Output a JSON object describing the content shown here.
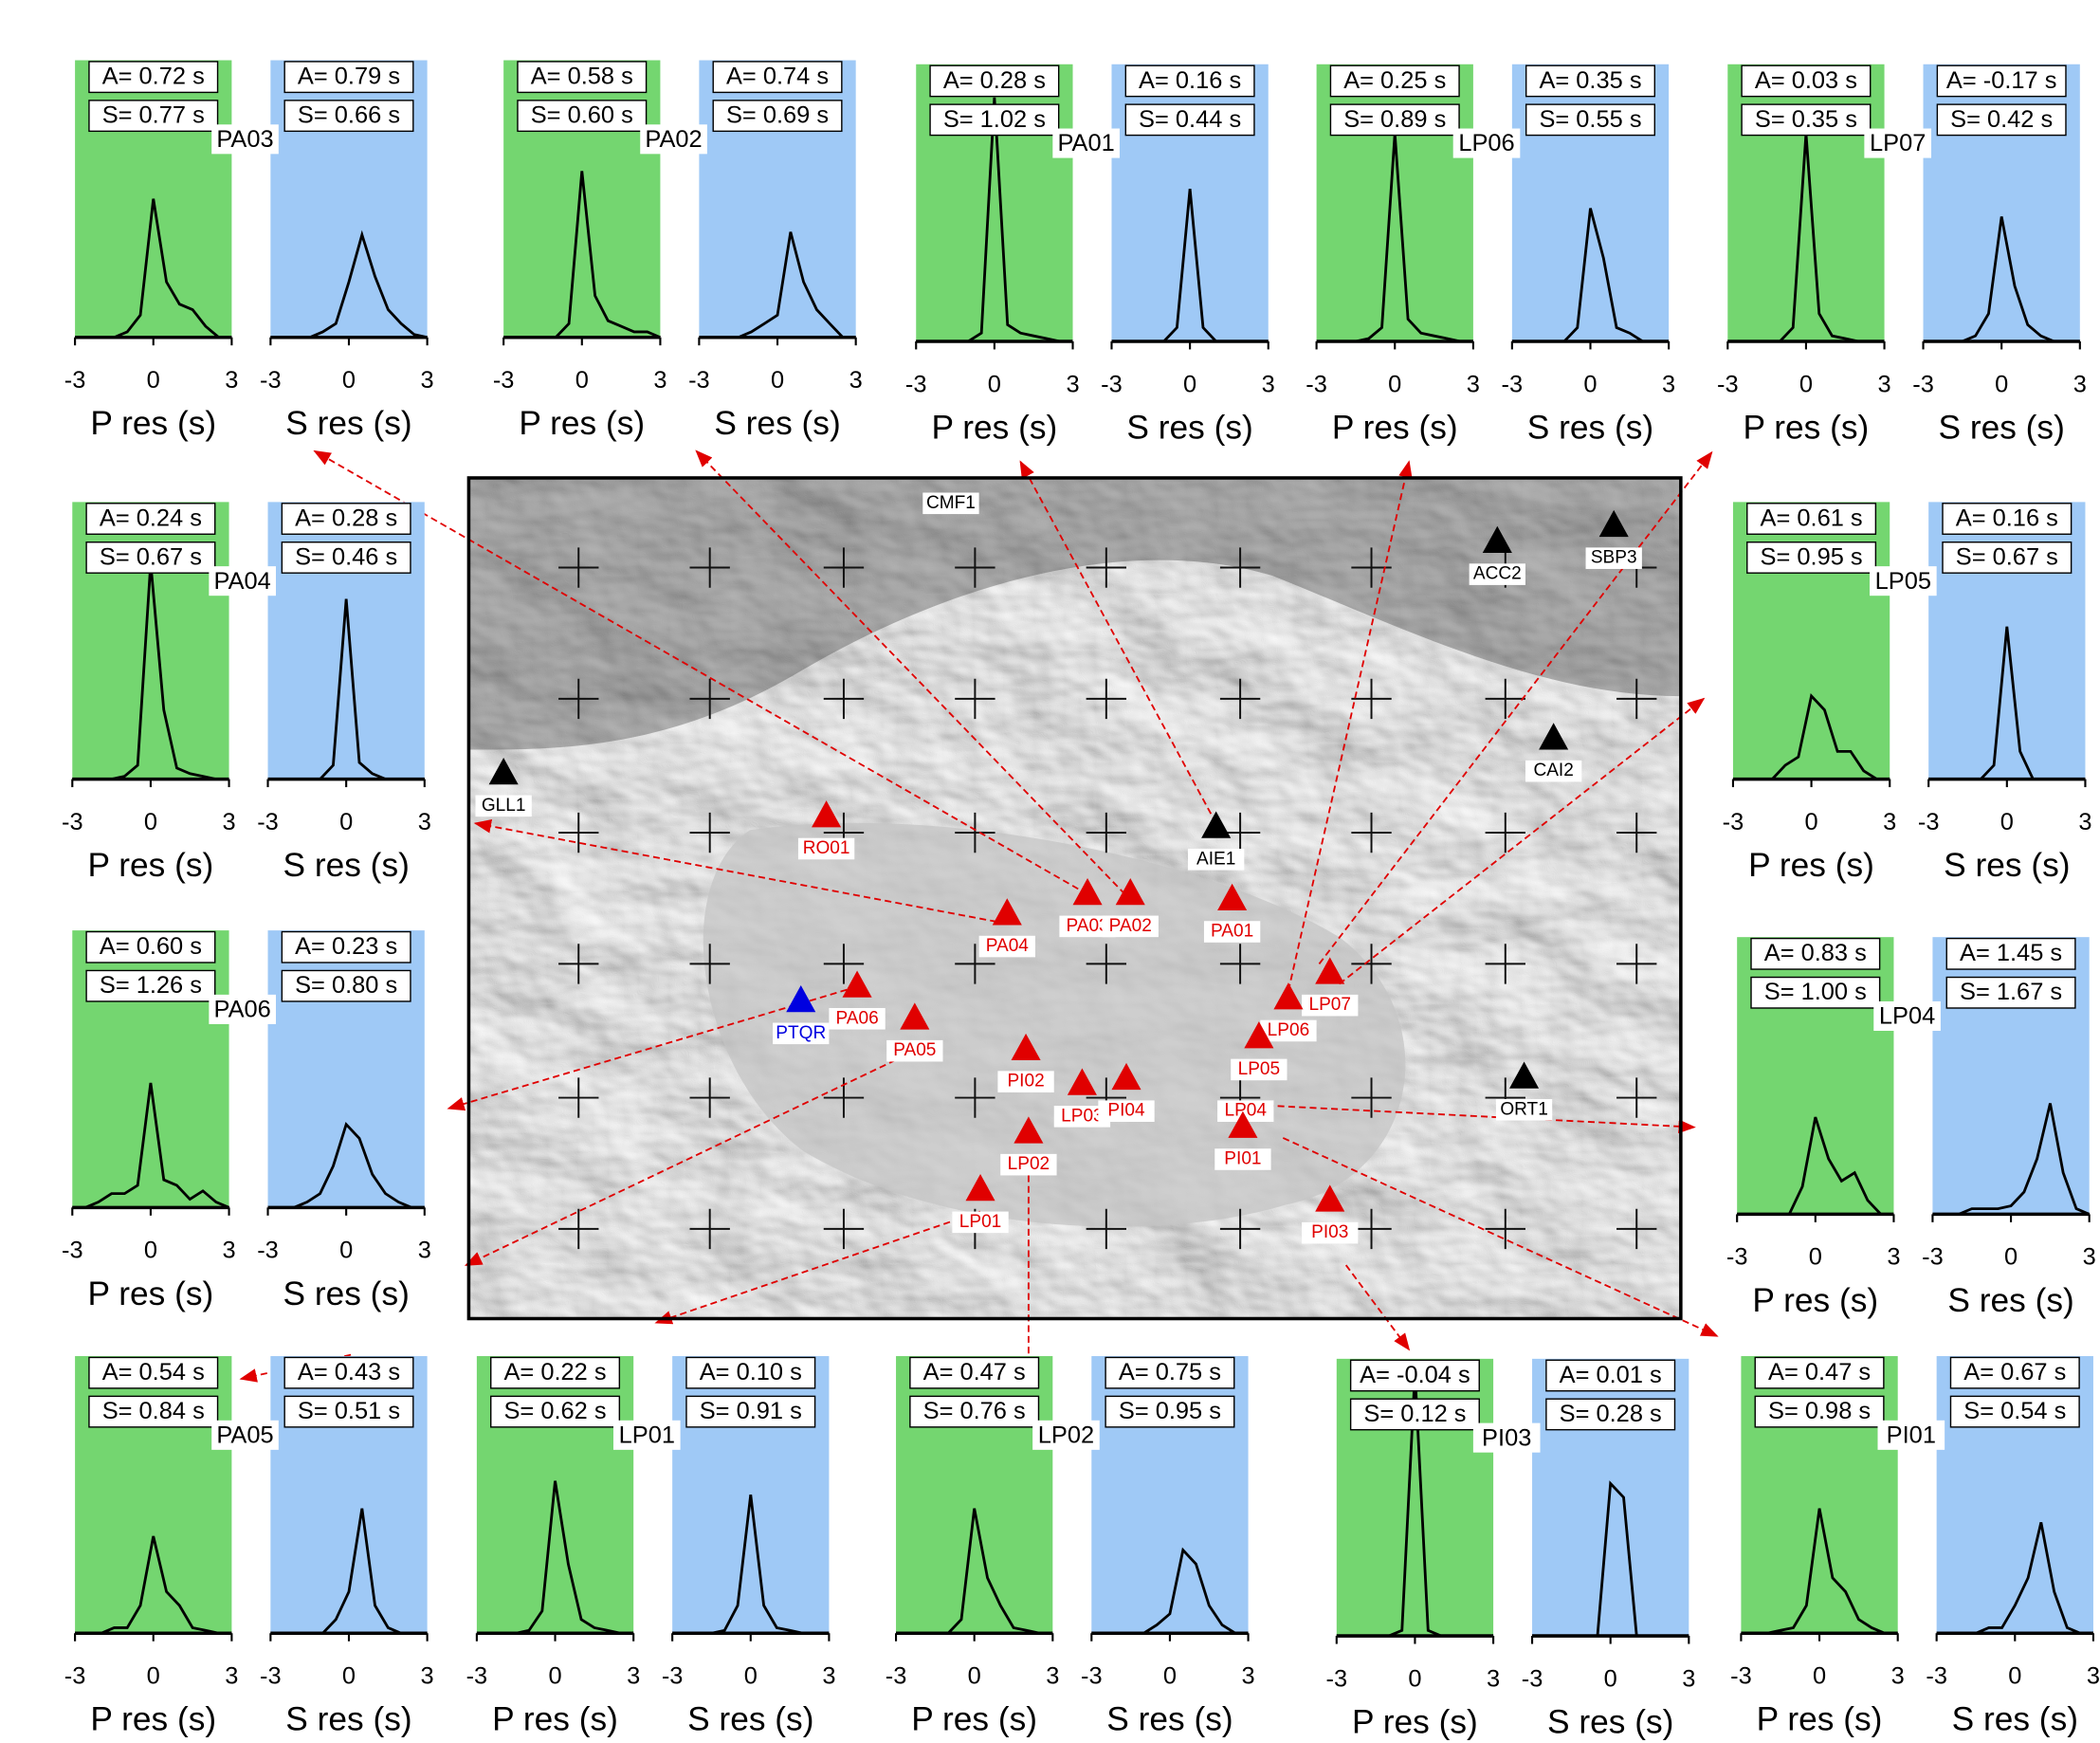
{
  "chart_data": [
    {
      "type": "line",
      "title": "PA03",
      "x": [
        -3,
        -2.5,
        -2,
        -1.5,
        -1,
        -0.5,
        0,
        0.5,
        1,
        1.5,
        2,
        2.5,
        3
      ],
      "xlim": [
        -3,
        3
      ],
      "xticks": [
        -3,
        0,
        3
      ],
      "ylim": [
        0,
        1
      ],
      "series": [
        {
          "name": "P res (s)",
          "color": "#74d670",
          "annotations": [
            "A= 0.72 s",
            "S= 0.77 s"
          ],
          "values": [
            0,
            0,
            0,
            0,
            0.02,
            0.08,
            0.5,
            0.2,
            0.12,
            0.1,
            0.04,
            0,
            0
          ]
        },
        {
          "name": "S res (s)",
          "color": "#9fc9f6",
          "annotations": [
            "A= 0.79 s",
            "S= 0.66 s"
          ],
          "values": [
            0,
            0,
            0,
            0,
            0.02,
            0.05,
            0.2,
            0.37,
            0.22,
            0.1,
            0.05,
            0.01,
            0
          ]
        }
      ]
    },
    {
      "type": "line",
      "title": "PA02",
      "x": [
        -3,
        -2.5,
        -2,
        -1.5,
        -1,
        -0.5,
        0,
        0.5,
        1,
        1.5,
        2,
        2.5,
        3
      ],
      "xlim": [
        -3,
        3
      ],
      "xticks": [
        -3,
        0,
        3
      ],
      "ylim": [
        0,
        1
      ],
      "series": [
        {
          "name": "P res (s)",
          "color": "#74d670",
          "annotations": [
            "A= 0.58 s",
            "S= 0.60 s"
          ],
          "values": [
            0,
            0,
            0,
            0,
            0,
            0.05,
            0.6,
            0.15,
            0.06,
            0.04,
            0.02,
            0.02,
            0
          ]
        },
        {
          "name": "S res (s)",
          "color": "#9fc9f6",
          "annotations": [
            "A= 0.74 s",
            "S= 0.69 s"
          ],
          "values": [
            0,
            0,
            0,
            0,
            0.02,
            0.05,
            0.08,
            0.38,
            0.2,
            0.1,
            0.05,
            0,
            0
          ]
        }
      ]
    },
    {
      "type": "line",
      "title": "PA01",
      "x": [
        -3,
        -2.5,
        -2,
        -1.5,
        -1,
        -0.5,
        0,
        0.5,
        1,
        1.5,
        2,
        2.5,
        3
      ],
      "xlim": [
        -3,
        3
      ],
      "xticks": [
        -3,
        0,
        3
      ],
      "ylim": [
        0,
        1
      ],
      "series": [
        {
          "name": "P res (s)",
          "color": "#74d670",
          "annotations": [
            "A= 0.28 s",
            "S= 1.02 s"
          ],
          "values": [
            0,
            0,
            0,
            0,
            0,
            0.03,
            0.88,
            0.06,
            0.03,
            0.02,
            0.01,
            0,
            0
          ]
        },
        {
          "name": "S res (s)",
          "color": "#9fc9f6",
          "annotations": [
            "A= 0.16 s",
            "S= 0.44 s"
          ],
          "values": [
            0,
            0,
            0,
            0,
            0,
            0.05,
            0.55,
            0.05,
            0,
            0,
            0,
            0,
            0
          ]
        }
      ]
    },
    {
      "type": "line",
      "title": "LP06",
      "x": [
        -3,
        -2.5,
        -2,
        -1.5,
        -1,
        -0.5,
        0,
        0.5,
        1,
        1.5,
        2,
        2.5,
        3
      ],
      "xlim": [
        -3,
        3
      ],
      "xticks": [
        -3,
        0,
        3
      ],
      "ylim": [
        0,
        1
      ],
      "series": [
        {
          "name": "P res (s)",
          "color": "#74d670",
          "annotations": [
            "A= 0.25 s",
            "S= 0.89 s"
          ],
          "values": [
            0,
            0,
            0,
            0,
            0.01,
            0.05,
            0.75,
            0.08,
            0.03,
            0.02,
            0.01,
            0,
            0
          ]
        },
        {
          "name": "S res (s)",
          "color": "#9fc9f6",
          "annotations": [
            "A= 0.35 s",
            "S= 0.55 s"
          ],
          "values": [
            0,
            0,
            0,
            0,
            0,
            0.05,
            0.48,
            0.3,
            0.05,
            0.03,
            0,
            0,
            0
          ]
        }
      ]
    },
    {
      "type": "line",
      "title": "LP07",
      "x": [
        -3,
        -2.5,
        -2,
        -1.5,
        -1,
        -0.5,
        0,
        0.5,
        1,
        1.5,
        2,
        2.5,
        3
      ],
      "xlim": [
        -3,
        3
      ],
      "xticks": [
        -3,
        0,
        3
      ],
      "ylim": [
        0,
        1
      ],
      "series": [
        {
          "name": "P res (s)",
          "color": "#74d670",
          "annotations": [
            "A= 0.03 s",
            "S= 0.35 s"
          ],
          "values": [
            0,
            0,
            0,
            0,
            0,
            0.05,
            0.75,
            0.1,
            0.02,
            0.01,
            0,
            0,
            0
          ]
        },
        {
          "name": "S res (s)",
          "color": "#9fc9f6",
          "annotations": [
            "A= -0.17 s",
            "S= 0.42 s"
          ],
          "values": [
            0,
            0,
            0,
            0,
            0.02,
            0.1,
            0.45,
            0.2,
            0.06,
            0.02,
            0,
            0,
            0
          ]
        }
      ]
    },
    {
      "type": "line",
      "title": "PA04",
      "x": [
        -3,
        -2.5,
        -2,
        -1.5,
        -1,
        -0.5,
        0,
        0.5,
        1,
        1.5,
        2,
        2.5,
        3
      ],
      "xlim": [
        -3,
        3
      ],
      "xticks": [
        -3,
        0,
        3
      ],
      "ylim": [
        0,
        1
      ],
      "series": [
        {
          "name": "P res (s)",
          "color": "#74d670",
          "annotations": [
            "A= 0.24 s",
            "S= 0.67 s"
          ],
          "values": [
            0,
            0,
            0,
            0,
            0.01,
            0.05,
            0.78,
            0.25,
            0.04,
            0.02,
            0.01,
            0,
            0
          ]
        },
        {
          "name": "S res (s)",
          "color": "#9fc9f6",
          "annotations": [
            "A= 0.28 s",
            "S= 0.46 s"
          ],
          "values": [
            0,
            0,
            0,
            0,
            0,
            0.05,
            0.65,
            0.06,
            0.02,
            0,
            0,
            0,
            0
          ]
        }
      ]
    },
    {
      "type": "line",
      "title": "LP05",
      "x": [
        -3,
        -2.5,
        -2,
        -1.5,
        -1,
        -0.5,
        0,
        0.5,
        1,
        1.5,
        2,
        2.5,
        3
      ],
      "xlim": [
        -3,
        3
      ],
      "xticks": [
        -3,
        0,
        3
      ],
      "ylim": [
        0,
        1
      ],
      "series": [
        {
          "name": "P res (s)",
          "color": "#74d670",
          "annotations": [
            "A= 0.61 s",
            "S= 0.95 s"
          ],
          "values": [
            0,
            0,
            0,
            0,
            0.05,
            0.08,
            0.3,
            0.25,
            0.1,
            0.1,
            0.03,
            0,
            0
          ]
        },
        {
          "name": "S res (s)",
          "color": "#9fc9f6",
          "annotations": [
            "A= 0.16 s",
            "S= 0.67 s"
          ],
          "values": [
            0,
            0,
            0,
            0,
            0,
            0.05,
            0.55,
            0.1,
            0,
            0,
            0,
            0,
            0
          ]
        }
      ]
    },
    {
      "type": "line",
      "title": "PA06",
      "x": [
        -3,
        -2.5,
        -2,
        -1.5,
        -1,
        -0.5,
        0,
        0.5,
        1,
        1.5,
        2,
        2.5,
        3
      ],
      "xlim": [
        -3,
        3
      ],
      "xticks": [
        -3,
        0,
        3
      ],
      "ylim": [
        0,
        1
      ],
      "series": [
        {
          "name": "P res (s)",
          "color": "#74d670",
          "annotations": [
            "A= 0.60 s",
            "S= 1.26 s"
          ],
          "values": [
            0,
            0,
            0.02,
            0.05,
            0.05,
            0.08,
            0.45,
            0.1,
            0.08,
            0.03,
            0.06,
            0.02,
            0
          ]
        },
        {
          "name": "S res (s)",
          "color": "#9fc9f6",
          "annotations": [
            "A= 0.23 s",
            "S= 0.80 s"
          ],
          "values": [
            0,
            0,
            0,
            0.02,
            0.05,
            0.15,
            0.3,
            0.25,
            0.12,
            0.05,
            0.02,
            0,
            0
          ]
        }
      ]
    },
    {
      "type": "line",
      "title": "LP04",
      "x": [
        -3,
        -2.5,
        -2,
        -1.5,
        -1,
        -0.5,
        0,
        0.5,
        1,
        1.5,
        2,
        2.5,
        3
      ],
      "xlim": [
        -3,
        3
      ],
      "xticks": [
        -3,
        0,
        3
      ],
      "ylim": [
        0,
        1
      ],
      "series": [
        {
          "name": "P res (s)",
          "color": "#74d670",
          "annotations": [
            "A= 0.83 s",
            "S= 1.00 s"
          ],
          "values": [
            0,
            0,
            0,
            0,
            0,
            0.1,
            0.35,
            0.2,
            0.12,
            0.15,
            0.05,
            0,
            0
          ]
        },
        {
          "name": "S res (s)",
          "color": "#9fc9f6",
          "annotations": [
            "A= 1.45 s",
            "S= 1.67 s"
          ],
          "values": [
            0,
            0,
            0,
            0.02,
            0.02,
            0.02,
            0.03,
            0.08,
            0.2,
            0.4,
            0.15,
            0.02,
            0
          ]
        }
      ]
    },
    {
      "type": "line",
      "title": "PA05",
      "x": [
        -3,
        -2.5,
        -2,
        -1.5,
        -1,
        -0.5,
        0,
        0.5,
        1,
        1.5,
        2,
        2.5,
        3
      ],
      "xlim": [
        -3,
        3
      ],
      "xticks": [
        -3,
        0,
        3
      ],
      "ylim": [
        0,
        1
      ],
      "series": [
        {
          "name": "P res (s)",
          "color": "#74d670",
          "annotations": [
            "A= 0.54 s",
            "S= 0.84 s"
          ],
          "values": [
            0,
            0,
            0,
            0.02,
            0.02,
            0.1,
            0.35,
            0.15,
            0.1,
            0.02,
            0.01,
            0,
            0
          ]
        },
        {
          "name": "S res (s)",
          "color": "#9fc9f6",
          "annotations": [
            "A= 0.43 s",
            "S= 0.51 s"
          ],
          "values": [
            0,
            0,
            0,
            0,
            0,
            0.05,
            0.15,
            0.45,
            0.1,
            0.02,
            0,
            0,
            0
          ]
        }
      ]
    },
    {
      "type": "line",
      "title": "LP01",
      "x": [
        -3,
        -2.5,
        -2,
        -1.5,
        -1,
        -0.5,
        0,
        0.5,
        1,
        1.5,
        2,
        2.5,
        3
      ],
      "xlim": [
        -3,
        3
      ],
      "xticks": [
        -3,
        0,
        3
      ],
      "ylim": [
        0,
        1
      ],
      "series": [
        {
          "name": "P res (s)",
          "color": "#74d670",
          "annotations": [
            "A= 0.22 s",
            "S= 0.62 s"
          ],
          "values": [
            0,
            0,
            0,
            0,
            0.01,
            0.08,
            0.55,
            0.25,
            0.05,
            0.02,
            0.01,
            0,
            0
          ]
        },
        {
          "name": "S res (s)",
          "color": "#9fc9f6",
          "annotations": [
            "A= 0.10 s",
            "S= 0.91 s"
          ],
          "values": [
            0,
            0,
            0,
            0,
            0.01,
            0.1,
            0.5,
            0.1,
            0.02,
            0.01,
            0,
            0,
            0
          ]
        }
      ]
    },
    {
      "type": "line",
      "title": "LP02",
      "x": [
        -3,
        -2.5,
        -2,
        -1.5,
        -1,
        -0.5,
        0,
        0.5,
        1,
        1.5,
        2,
        2.5,
        3
      ],
      "xlim": [
        -3,
        3
      ],
      "xticks": [
        -3,
        0,
        3
      ],
      "ylim": [
        0,
        1
      ],
      "series": [
        {
          "name": "P res (s)",
          "color": "#74d670",
          "annotations": [
            "A= 0.47 s",
            "S= 0.76 s"
          ],
          "values": [
            0,
            0,
            0,
            0,
            0,
            0.05,
            0.45,
            0.2,
            0.1,
            0.02,
            0.01,
            0,
            0
          ]
        },
        {
          "name": "S res (s)",
          "color": "#9fc9f6",
          "annotations": [
            "A= 0.75 s",
            "S= 0.95 s"
          ],
          "values": [
            0,
            0,
            0,
            0,
            0,
            0.03,
            0.07,
            0.3,
            0.25,
            0.1,
            0.03,
            0,
            0
          ]
        }
      ]
    },
    {
      "type": "line",
      "title": "PI03",
      "x": [
        -3,
        -2.5,
        -2,
        -1.5,
        -1,
        -0.5,
        0,
        0.5,
        1,
        1.5,
        2,
        2.5,
        3
      ],
      "xlim": [
        -3,
        3
      ],
      "xticks": [
        -3,
        0,
        3
      ],
      "ylim": [
        0,
        1
      ],
      "series": [
        {
          "name": "P res (s)",
          "color": "#74d670",
          "annotations": [
            "A= -0.04 s",
            "S= 0.12 s"
          ],
          "values": [
            0,
            0,
            0,
            0,
            0,
            0.02,
            0.95,
            0.02,
            0,
            0,
            0,
            0,
            0
          ]
        },
        {
          "name": "S res (s)",
          "color": "#9fc9f6",
          "annotations": [
            "A= 0.01 s",
            "S= 0.28 s"
          ],
          "values": [
            0,
            0,
            0,
            0,
            0,
            0,
            0.55,
            0.5,
            0,
            0,
            0,
            0,
            0
          ]
        }
      ]
    },
    {
      "type": "line",
      "title": "PI01",
      "x": [
        -3,
        -2.5,
        -2,
        -1.5,
        -1,
        -0.5,
        0,
        0.5,
        1,
        1.5,
        2,
        2.5,
        3
      ],
      "xlim": [
        -3,
        3
      ],
      "xticks": [
        -3,
        0,
        3
      ],
      "ylim": [
        0,
        1
      ],
      "series": [
        {
          "name": "P res (s)",
          "color": "#74d670",
          "annotations": [
            "A= 0.47 s",
            "S= 0.98 s"
          ],
          "values": [
            0,
            0,
            0,
            0.01,
            0.02,
            0.1,
            0.45,
            0.2,
            0.15,
            0.05,
            0.02,
            0,
            0
          ]
        },
        {
          "name": "S res (s)",
          "color": "#9fc9f6",
          "annotations": [
            "A= 0.67 s",
            "S= 0.54 s"
          ],
          "values": [
            0,
            0,
            0,
            0,
            0.02,
            0.02,
            0.1,
            0.2,
            0.4,
            0.15,
            0.02,
            0,
            0
          ]
        }
      ]
    }
  ],
  "map": {
    "stations": [
      {
        "name": "CMF1",
        "color": "#000000"
      },
      {
        "name": "ACC2",
        "color": "#000000"
      },
      {
        "name": "SBP3",
        "color": "#000000"
      },
      {
        "name": "CAI2",
        "color": "#000000"
      },
      {
        "name": "GLL1",
        "color": "#000000"
      },
      {
        "name": "AIE1",
        "color": "#000000"
      },
      {
        "name": "RO01",
        "color": "#e00000"
      },
      {
        "name": "PA01",
        "color": "#e00000"
      },
      {
        "name": "PA04",
        "color": "#e00000"
      },
      {
        "name": "PA03",
        "color": "#e00000"
      },
      {
        "name": "PA02",
        "color": "#e00000"
      },
      {
        "name": "LP07",
        "color": "#e00000"
      },
      {
        "name": "LP06",
        "color": "#e00000"
      },
      {
        "name": "PTQR",
        "color": "#0000e0"
      },
      {
        "name": "PA06",
        "color": "#e00000"
      },
      {
        "name": "PA05",
        "color": "#e00000"
      },
      {
        "name": "LP05",
        "color": "#e00000"
      },
      {
        "name": "PI02",
        "color": "#e00000"
      },
      {
        "name": "LP03",
        "color": "#e00000"
      },
      {
        "name": "PI04",
        "color": "#e00000"
      },
      {
        "name": "LP04",
        "color": "#e00000"
      },
      {
        "name": "ORT1",
        "color": "#000000"
      },
      {
        "name": "PI01",
        "color": "#e00000"
      },
      {
        "name": "LP02",
        "color": "#e00000"
      },
      {
        "name": "LP01",
        "color": "#e00000"
      },
      {
        "name": "PI03",
        "color": "#e00000"
      }
    ]
  }
}
